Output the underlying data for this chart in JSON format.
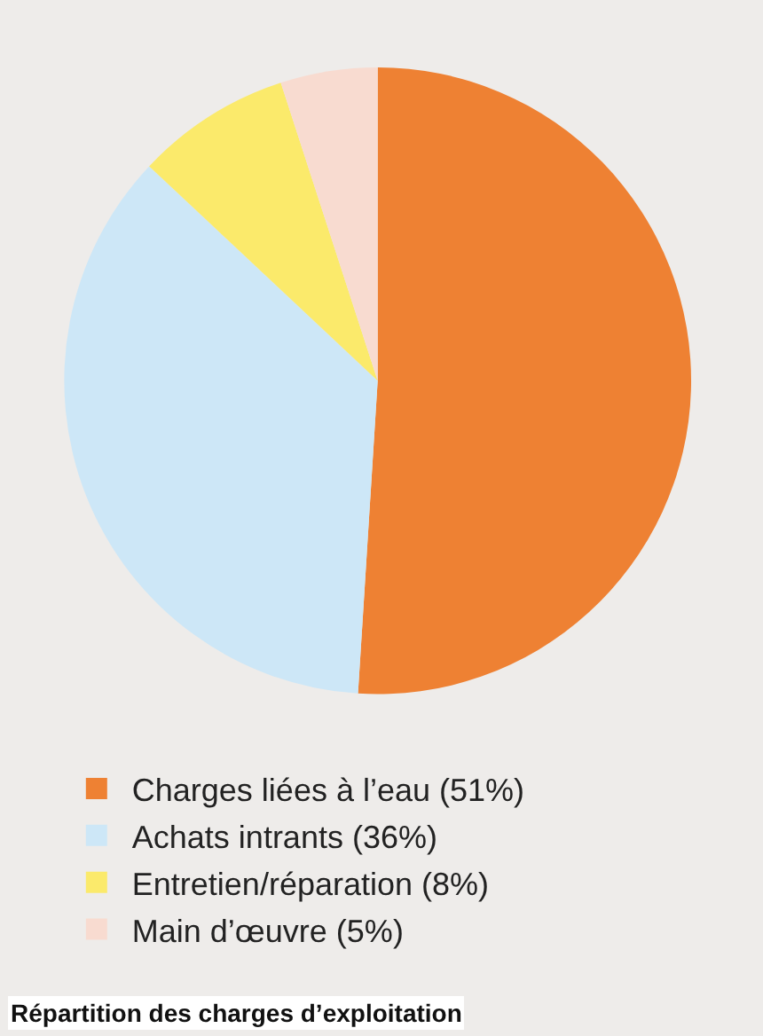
{
  "chart_data": {
    "type": "pie",
    "title": "Répartition des charges d’exploitation",
    "categories": [
      "Charges liées à l’eau (51%)",
      "Achats intrants (36%)",
      "Entretien/réparation (8%)",
      "Main d’œuvre (5%)"
    ],
    "values": [
      51,
      36,
      8,
      5
    ],
    "colors": [
      "#ee8133",
      "#cde7f7",
      "#fbea6b",
      "#f8dbd0"
    ],
    "legend": "bottom"
  }
}
